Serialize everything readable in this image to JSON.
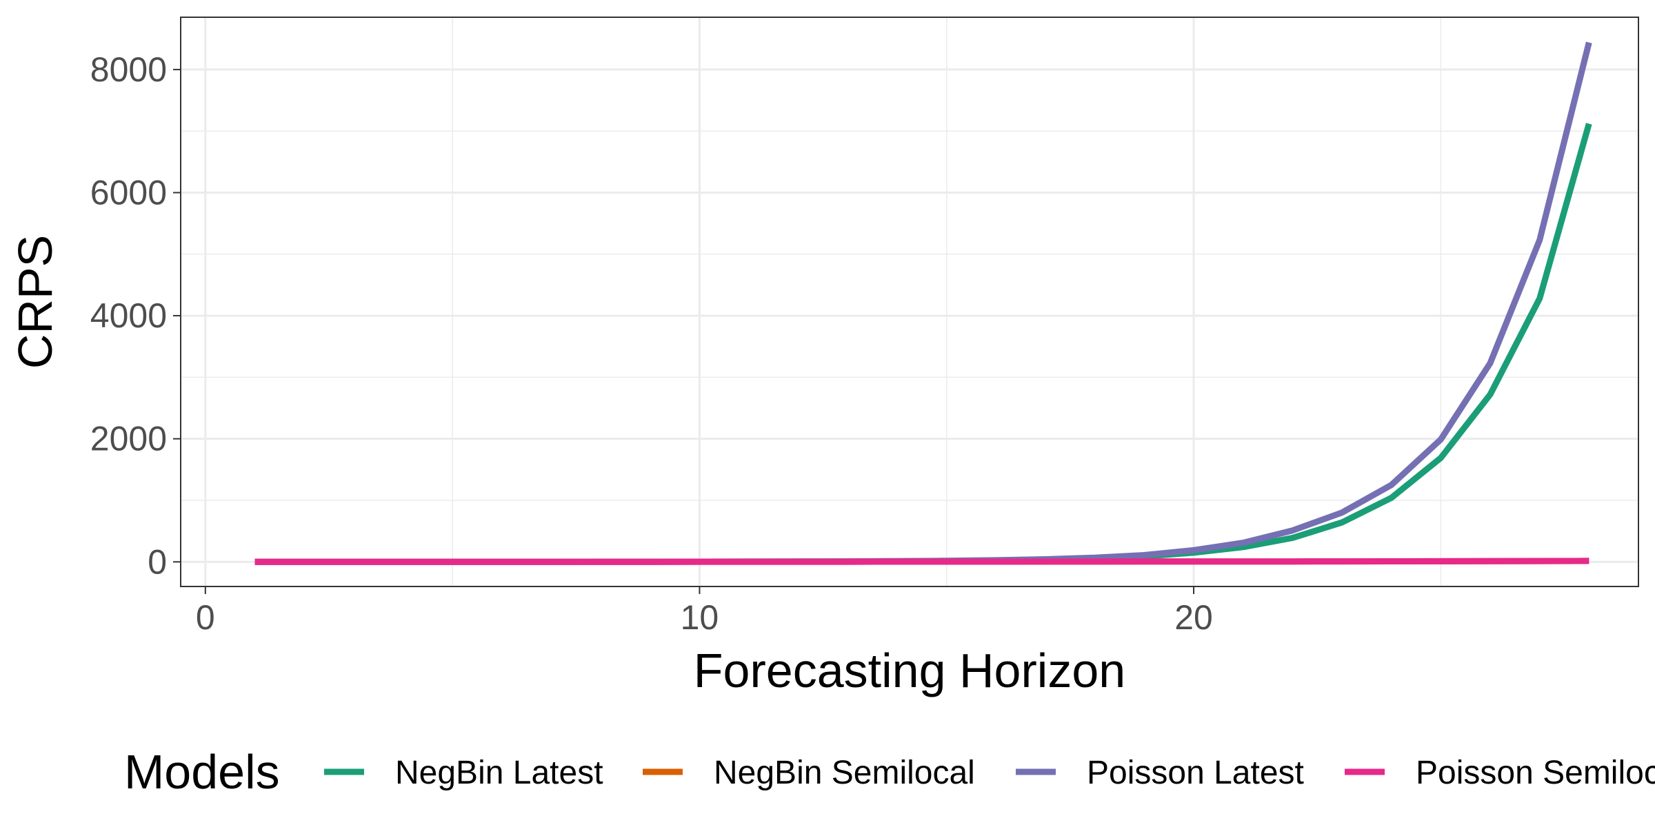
{
  "chart_data": {
    "type": "line",
    "xlabel": "Forecasting Horizon",
    "ylabel": "CRPS",
    "xlim": [
      -0.5,
      29
    ],
    "ylim": [
      -400,
      8850
    ],
    "x_ticks": [
      0,
      10,
      20
    ],
    "y_ticks": [
      0,
      2000,
      4000,
      6000,
      8000
    ],
    "grid": true,
    "legend_position": "bottom",
    "legend_title": "Models",
    "x": [
      1,
      2,
      3,
      4,
      5,
      6,
      7,
      8,
      9,
      10,
      11,
      12,
      13,
      14,
      15,
      16,
      17,
      18,
      19,
      20,
      21,
      22,
      23,
      24,
      25,
      26,
      27,
      28
    ],
    "series": [
      {
        "name": "NegBin Latest",
        "color": "#1b9e77",
        "values": [
          1,
          1,
          1,
          1,
          1,
          1,
          1,
          2,
          2,
          3,
          4,
          5,
          7,
          10,
          15,
          22,
          35,
          55,
          90,
          150,
          240,
          390,
          640,
          1040,
          1690,
          2720,
          4280,
          7120
        ]
      },
      {
        "name": "NegBin Semilocal",
        "color": "#d95f02",
        "values": [
          1,
          1,
          1,
          1,
          1,
          1,
          1,
          1,
          1,
          2,
          2,
          2,
          2,
          3,
          3,
          3,
          4,
          4,
          5,
          5,
          6,
          7,
          8,
          9,
          10,
          11,
          13,
          15
        ]
      },
      {
        "name": "Poisson Latest",
        "color": "#7570b3",
        "values": [
          1,
          1,
          1,
          1,
          1,
          1,
          1,
          2,
          2,
          3,
          4,
          6,
          8,
          12,
          18,
          27,
          42,
          67,
          110,
          190,
          310,
          510,
          800,
          1250,
          1990,
          3230,
          5230,
          8440
        ]
      },
      {
        "name": "Poisson Semilocal",
        "color": "#e7298a",
        "values": [
          1,
          1,
          1,
          1,
          1,
          1,
          1,
          1,
          1,
          2,
          2,
          2,
          2,
          3,
          3,
          3,
          4,
          4,
          5,
          5,
          6,
          7,
          8,
          9,
          10,
          11,
          13,
          15
        ]
      }
    ]
  }
}
